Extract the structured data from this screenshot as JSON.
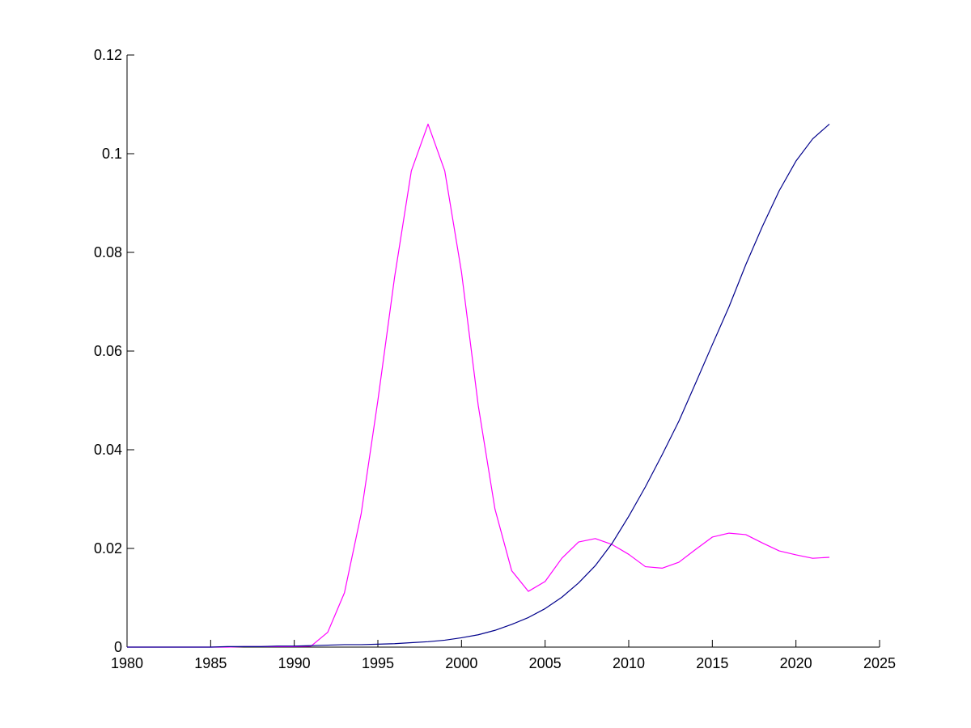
{
  "chart_data": {
    "type": "line",
    "title": "",
    "xlabel": "",
    "ylabel": "",
    "xlim": [
      1980,
      2025
    ],
    "ylim": [
      0,
      0.12
    ],
    "grid": false,
    "legend": "none",
    "x_ticks": [
      "1980",
      "1985",
      "1990",
      "1995",
      "2000",
      "2005",
      "2010",
      "2015",
      "2020",
      "2025"
    ],
    "y_ticks": [
      "0",
      "0.02",
      "0.04",
      "0.06",
      "0.08",
      "0.1",
      "0.12"
    ],
    "x_tick_values": [
      1980,
      1985,
      1990,
      1995,
      2000,
      2005,
      2010,
      2015,
      2020,
      2025
    ],
    "y_tick_values": [
      0,
      0.02,
      0.04,
      0.06,
      0.08,
      0.1,
      0.12
    ],
    "series": [
      {
        "color": "#ff00ff",
        "x": [
          1980,
          1981,
          1982,
          1983,
          1984,
          1985,
          1986,
          1987,
          1988,
          1989,
          1990,
          1991,
          1992,
          1993,
          1994,
          1995,
          1996,
          1997,
          1998,
          1999,
          2000,
          2001,
          2002,
          2003,
          2004,
          2005,
          2006,
          2007,
          2008,
          2009,
          2010,
          2011,
          2012,
          2013,
          2014,
          2015,
          2016,
          2017,
          2018,
          2019,
          2020,
          2021,
          2022
        ],
        "y": [
          0,
          0,
          0,
          0,
          0,
          0,
          0,
          0.0001,
          0.0001,
          0.0001,
          0.0001,
          0.0002,
          0.003,
          0.011,
          0.027,
          0.05,
          0.075,
          0.0965,
          0.106,
          0.0965,
          0.076,
          0.049,
          0.028,
          0.0155,
          0.0113,
          0.0133,
          0.018,
          0.0213,
          0.022,
          0.0208,
          0.0188,
          0.0163,
          0.016,
          0.0172,
          0.0198,
          0.0223,
          0.0231,
          0.0228,
          0.0211,
          0.0195,
          0.0187,
          0.018,
          0.0182
        ]
      },
      {
        "color": "#00008b",
        "x": [
          1980,
          1981,
          1982,
          1983,
          1984,
          1985,
          1986,
          1987,
          1988,
          1989,
          1990,
          1991,
          1992,
          1993,
          1994,
          1995,
          1996,
          1997,
          1998,
          1999,
          2000,
          2001,
          2002,
          2003,
          2004,
          2005,
          2006,
          2007,
          2008,
          2009,
          2010,
          2011,
          2012,
          2013,
          2014,
          2015,
          2016,
          2017,
          2018,
          2019,
          2020,
          2021,
          2022
        ],
        "y": [
          0,
          0,
          0,
          0,
          0,
          0,
          0.0001,
          0.0001,
          0.0001,
          0.0002,
          0.0002,
          0.0003,
          0.0004,
          0.0005,
          0.0005,
          0.0006,
          0.0007,
          0.0009,
          0.0011,
          0.0014,
          0.0019,
          0.0025,
          0.0034,
          0.0046,
          0.006,
          0.0078,
          0.0101,
          0.013,
          0.0165,
          0.021,
          0.0265,
          0.0325,
          0.039,
          0.0458,
          0.0535,
          0.0613,
          0.069,
          0.0775,
          0.0853,
          0.0925,
          0.0985,
          0.103,
          0.106
        ]
      }
    ]
  }
}
